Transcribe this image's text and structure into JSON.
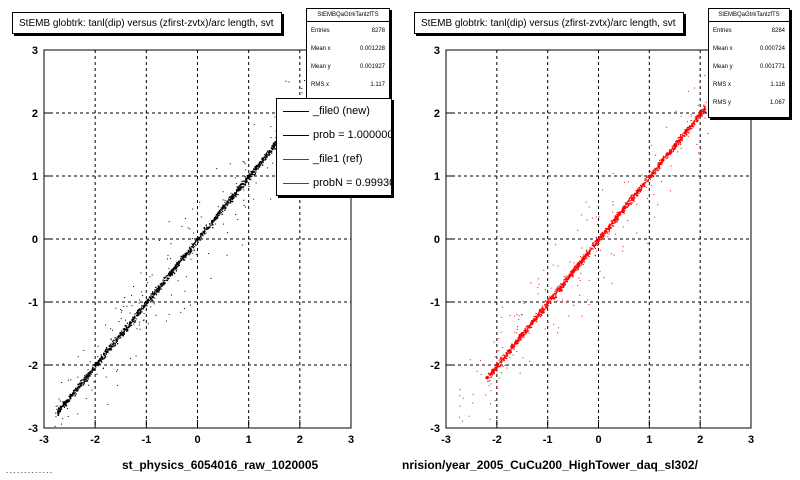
{
  "chart_data": [
    {
      "type": "scatter",
      "title": "StEMB globtrk: tanl(dip) versus (zfirst-zvtx)/arc length, svt",
      "x_caption": "st_physics_6054016_raw_1020005",
      "xlim": [
        -3,
        3
      ],
      "ylim": [
        -3,
        3
      ],
      "x_ticks": [
        "-3",
        "-2",
        "-1",
        "0",
        "1",
        "2",
        "3"
      ],
      "y_ticks": [
        "-3",
        "-2",
        "-1",
        "0",
        "1",
        "2",
        "3"
      ],
      "grid": true,
      "marker_color": "#000000",
      "trend": {
        "slope": 1.0,
        "spread": 0.12,
        "x_range": [
          -2.75,
          2.2
        ]
      },
      "series": [
        {
          "values": [
            [
              -2.6,
              -2.6
            ],
            [
              -2.0,
              -2.0
            ],
            [
              -1.5,
              -1.5
            ],
            [
              -1.0,
              -1.0
            ],
            [
              -0.5,
              -0.5
            ],
            [
              0.0,
              0.0
            ],
            [
              0.5,
              0.5
            ],
            [
              1.0,
              1.0
            ],
            [
              1.5,
              1.5
            ],
            [
              2.0,
              2.0
            ]
          ]
        }
      ],
      "stats": {
        "box_title": "StEMBQaGtrkTanlzfTS",
        "rows": [
          {
            "label": "Entries",
            "value": "8278"
          },
          {
            "label": "Mean x",
            "value": "0.001228"
          },
          {
            "label": "Mean y",
            "value": "0.001927"
          },
          {
            "label": "RMS x",
            "value": "1.117"
          }
        ]
      },
      "legend": [
        {
          "label": "_file0 (new)",
          "color": "#000000"
        },
        {
          "label": "prob = 1.000000",
          "color": "#000000"
        },
        {
          "label": "_file1 (ref)",
          "color": "#ff0000"
        },
        {
          "label": "probN = 0.99930",
          "color": "#ff0000"
        }
      ]
    },
    {
      "type": "scatter",
      "title": "StEMB globtrk: tanl(dip) versus (zfirst-zvtx)/arc length, svt",
      "x_caption": "nrision/year_2005_CuCu200_HighTower_daq_sl302/",
      "xlim": [
        -3,
        3
      ],
      "ylim": [
        -3,
        3
      ],
      "x_ticks": [
        "-3",
        "-2",
        "-1",
        "0",
        "1",
        "2",
        "3"
      ],
      "y_ticks": [
        "-3",
        "-2",
        "-1",
        "0",
        "1",
        "2",
        "3"
      ],
      "grid": true,
      "marker_color": "#ff0000",
      "trend": {
        "slope": 1.0,
        "spread": 0.12,
        "x_range": [
          -2.2,
          2.1
        ]
      },
      "series": [
        {
          "values": [
            [
              -2.2,
              -2.2
            ],
            [
              -2.0,
              -2.0
            ],
            [
              -1.5,
              -1.5
            ],
            [
              -1.0,
              -1.0
            ],
            [
              -0.5,
              -0.5
            ],
            [
              0.0,
              0.0
            ],
            [
              0.5,
              0.5
            ],
            [
              1.0,
              1.0
            ],
            [
              1.5,
              1.5
            ],
            [
              2.0,
              2.0
            ]
          ]
        }
      ],
      "stats": {
        "box_title": "StEMBQaGtrkTanlzfTS",
        "rows": [
          {
            "label": "Entries",
            "value": "8284"
          },
          {
            "label": "Mean x",
            "value": "0.000724"
          },
          {
            "label": "Mean y",
            "value": "0.001771"
          },
          {
            "label": "RMS x",
            "value": "1.116"
          },
          {
            "label": "RMS y",
            "value": "1.067"
          }
        ]
      }
    }
  ],
  "footer": "- - - -  - - - - - - - - -"
}
